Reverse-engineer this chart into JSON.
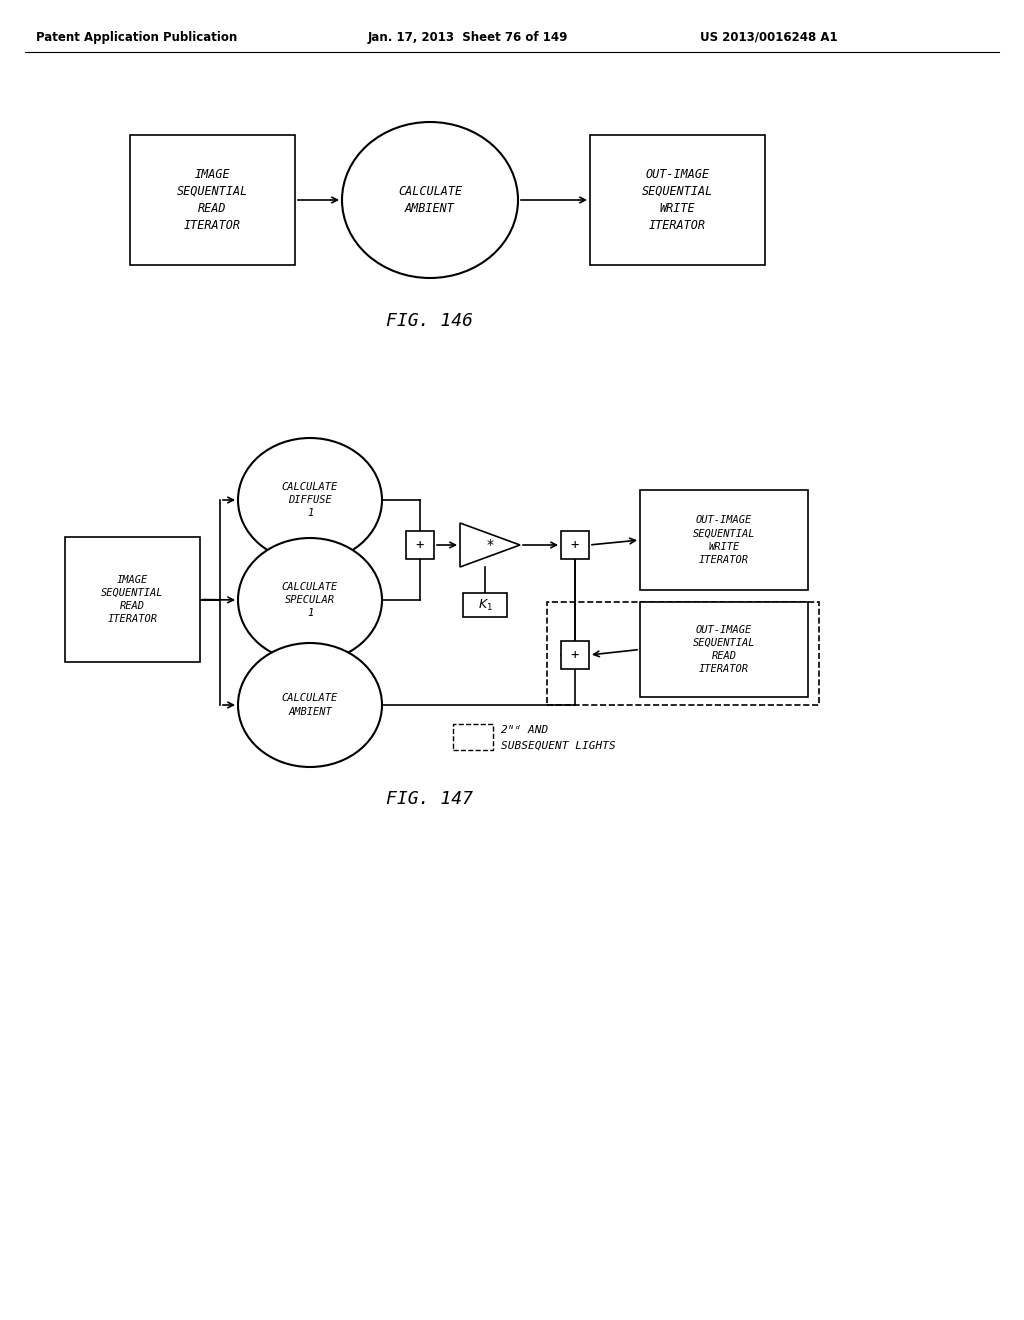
{
  "header_left": "Patent Application Publication",
  "header_mid": "Jan. 17, 2013  Sheet 76 of 149",
  "header_right": "US 2013/0016248 A1",
  "fig146_label": "FIG. 146",
  "fig147_label": "FIG. 147",
  "bg_color": "#ffffff",
  "fig146": {
    "box1_text": "IMAGE\nSEQUENTIAL\nREAD\nITERATOR",
    "ellipse_text": "CALCULATE\nAMBIENT",
    "box2_text": "OUT-IMAGE\nSEQUENTIAL\nWRITE\nITERATOR"
  },
  "fig147": {
    "box_left_text": "IMAGE\nSEQUENTIAL\nREAD\nITERATOR",
    "circle1_text": "CALCULATE\nDIFFUSE\n1",
    "circle2_text": "CALCULATE\nSPECULAR\n1",
    "circle3_text": "CALCULATE\nAMBIENT",
    "box_write_text": "OUT-IMAGE\nSEQUENTIAL\nWRITE\nITERATOR",
    "box_read_text": "OUT-IMAGE\nSEQUENTIAL\nREAD\nITERATOR",
    "k1_label": "K1",
    "legend_text": "2ND AND\nSUBSEQUENT LIGHTS"
  }
}
